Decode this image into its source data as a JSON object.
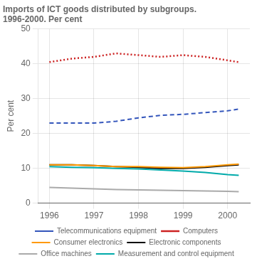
{
  "chart_data": {
    "type": "line",
    "title": "Imports of ICT goods distributed by subgroups.",
    "subtitle": "1996-2000. Per cent",
    "ylabel": "Per cent",
    "x": [
      1996,
      1996.5,
      1997,
      1997.5,
      1998,
      1998.5,
      1999,
      1999.5,
      2000,
      2000.25
    ],
    "series": [
      {
        "name": "Telecommunications equipment",
        "color": "#3355bb",
        "line_style": "dashed",
        "values": [
          23.0,
          23.0,
          23.0,
          23.5,
          24.5,
          25.2,
          25.5,
          26.0,
          26.5,
          27.0
        ]
      },
      {
        "name": "Computers",
        "color": "#cc2222",
        "line_style": "dotted",
        "values": [
          40.5,
          41.5,
          42.0,
          43.0,
          42.5,
          42.0,
          42.5,
          42.0,
          41.0,
          40.5
        ]
      },
      {
        "name": "Consumer electronics",
        "color": "#ff9900",
        "line_style": "solid",
        "values": [
          11.0,
          11.0,
          10.8,
          10.5,
          10.5,
          10.3,
          10.2,
          10.5,
          11.0,
          11.2
        ]
      },
      {
        "name": "Electronic components",
        "color": "#000000",
        "line_style": "solid",
        "values": [
          11.0,
          11.0,
          10.8,
          10.5,
          10.3,
          10.0,
          10.0,
          10.3,
          10.8,
          11.0
        ]
      },
      {
        "name": "Office machines",
        "color": "#aaaaaa",
        "line_style": "solid",
        "values": [
          4.5,
          4.3,
          4.1,
          3.9,
          3.8,
          3.7,
          3.6,
          3.5,
          3.4,
          3.3
        ]
      },
      {
        "name": "Measurement and control equipment",
        "color": "#00aaaa",
        "line_style": "solid",
        "values": [
          10.5,
          10.3,
          10.2,
          10.0,
          9.8,
          9.5,
          9.2,
          8.8,
          8.2,
          8.0
        ]
      }
    ],
    "xlim": [
      1995.75,
      2000.5
    ],
    "xticks": [
      1996,
      1997,
      1998,
      1999,
      2000
    ],
    "ylim": [
      0,
      50
    ],
    "yticks": [
      0,
      10,
      20,
      30,
      40,
      50
    ],
    "grid": true,
    "legend": "bottom"
  }
}
